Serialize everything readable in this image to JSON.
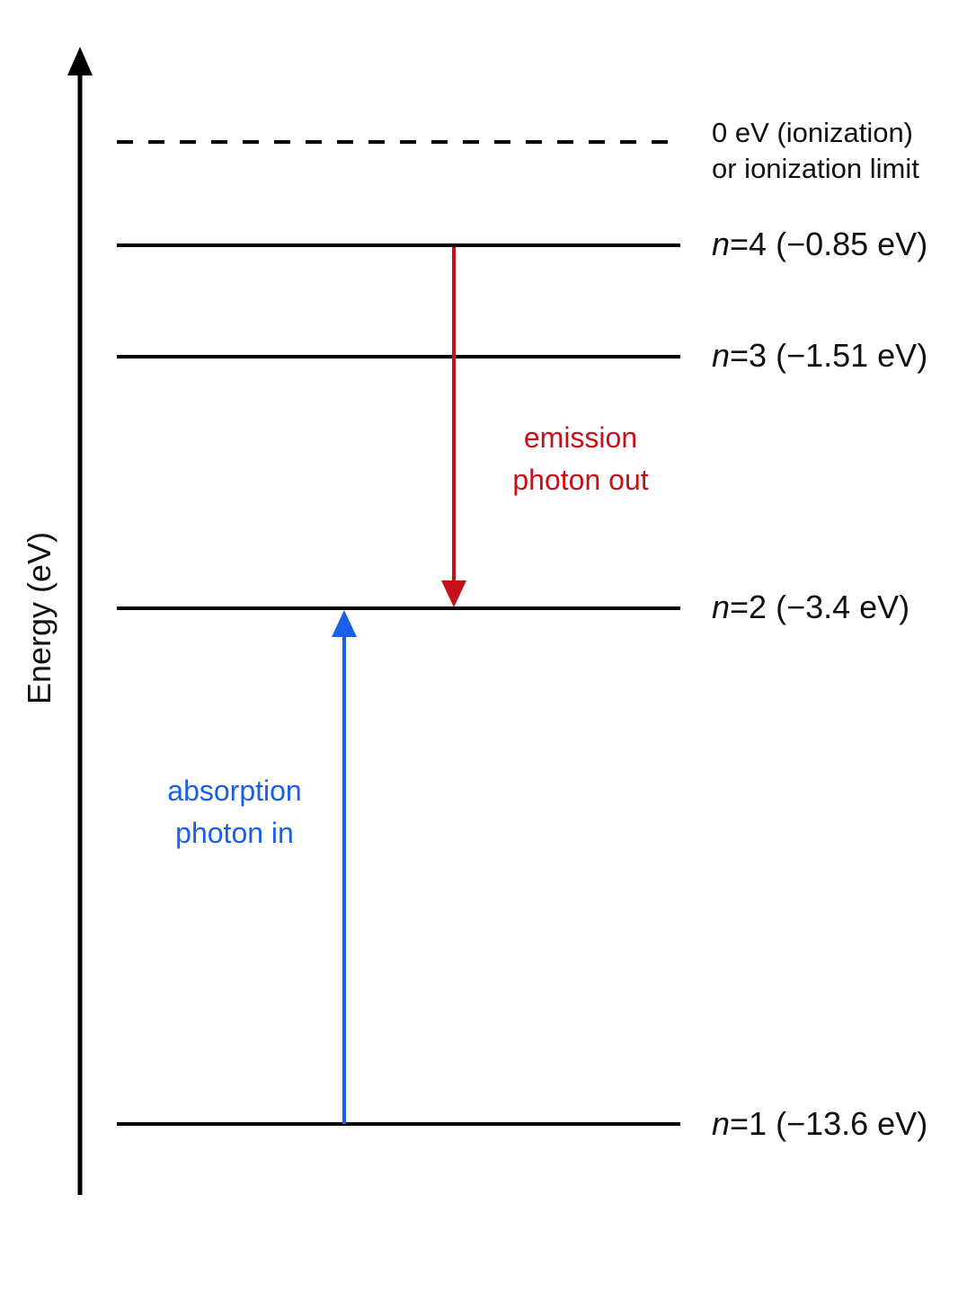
{
  "axis": {
    "label": "Energy (eV)"
  },
  "ionization": {
    "lines": [
      "0 eV (ionization)",
      "or ionization limit"
    ]
  },
  "levels": [
    {
      "symbol": "n",
      "rest": "=4 (−0.85 eV)"
    },
    {
      "symbol": "n",
      "rest": "=3 (−1.51 eV)"
    },
    {
      "symbol": "n",
      "rest": "=2 (−3.4 eV)"
    },
    {
      "symbol": "n",
      "rest": "=1 (−13.6 eV)"
    }
  ],
  "emission": {
    "lines": [
      "emission",
      "photon out"
    ]
  },
  "absorption": {
    "lines": [
      "absorption",
      "photon in"
    ]
  }
}
